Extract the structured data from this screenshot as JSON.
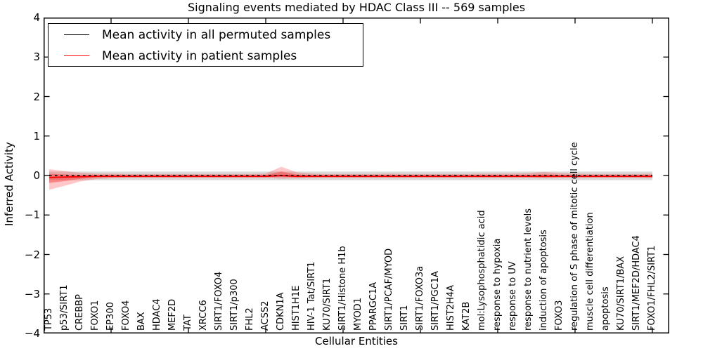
{
  "title": "Signaling events mediated by HDAC Class III -- 569 samples",
  "axes": {
    "xlabel": "Cellular Entities",
    "ylabel": "Inferred Activity",
    "yticks": [
      "4",
      "3",
      "2",
      "1",
      "0",
      "−1",
      "−2",
      "−3",
      "−4"
    ],
    "ytick_values": [
      4,
      3,
      2,
      1,
      0,
      -1,
      -2,
      -3,
      -4
    ],
    "ylim": [
      -4,
      4
    ]
  },
  "legend": {
    "items": [
      {
        "label": "Mean activity in all permuted samples",
        "color": "#000000"
      },
      {
        "label": "Mean activity in patient samples",
        "color": "#ff0000"
      }
    ]
  },
  "colors": {
    "patient": "#ff0000",
    "permuted": "#000000",
    "permuted_band": "#999999",
    "frame": "#000000",
    "background": "#ffffff"
  },
  "chart_data": {
    "type": "line",
    "title": "Signaling events mediated by HDAC Class III -- 569 samples",
    "xlabel": "Cellular Entities",
    "ylabel": "Inferred Activity",
    "ylim": [
      -4,
      4
    ],
    "grid": false,
    "legend_position": "upper-left",
    "xticks_at_category_numbers": [
      5,
      10,
      15,
      20,
      25,
      30,
      35,
      40
    ],
    "categories": [
      "TP53",
      "p53/SIRT1",
      "CREBBP",
      "FOXO1",
      "EP300",
      "FOXO4",
      "BAX",
      "HDAC4",
      "MEF2D",
      "TAT",
      "XRCC6",
      "SIRT1/FOXO4",
      "SIRT1/p300",
      "FHL2",
      "ACSS2",
      "CDKN1A",
      "HIST1H1E",
      "HIV-1 Tat/SIRT1",
      "KU70/SIRT1",
      "SIRT1/Histone H1b",
      "MYOD1",
      "PPARGC1A",
      "SIRT1/PCAF/MYOD",
      "SIRT1",
      "SIRT1/FOXO3a",
      "SIRT1/PGC1A",
      "HIST2H4A",
      "KAT2B",
      "mol:Lysophosphatidic acid",
      "response to hypoxia",
      "response to UV",
      "response to nutrient levels",
      "induction of apoptosis",
      "FOXO3",
      "regulation of S phase of mitotic cell cycle",
      "muscle cell differentiation",
      "apoptosis",
      "KU70/SIRT1/BAX",
      "SIRT1/MEF2D/HDAC4",
      "FOXO1/FHL2/SIRT1"
    ],
    "series": [
      {
        "name": "Mean activity in all permuted samples",
        "color": "#000000",
        "style": "dashed-over-solid",
        "values": [
          0,
          0,
          0,
          0,
          0,
          0,
          0,
          0,
          0,
          0,
          0,
          0,
          0,
          0,
          0,
          0,
          0,
          0,
          0,
          0,
          0,
          0,
          0,
          0,
          0,
          0,
          0,
          0,
          0,
          0,
          0,
          0,
          0,
          0,
          0,
          0,
          0,
          0,
          0,
          0
        ]
      },
      {
        "name": "Mean activity in patient samples",
        "color": "#ff0000",
        "style": "solid",
        "values": [
          -0.05,
          -0.04,
          -0.03,
          -0.02,
          -0.02,
          -0.02,
          -0.02,
          -0.02,
          -0.02,
          -0.02,
          -0.02,
          -0.02,
          -0.02,
          -0.02,
          -0.02,
          0,
          -0.02,
          -0.02,
          -0.02,
          -0.02,
          -0.02,
          -0.02,
          -0.02,
          -0.02,
          -0.02,
          -0.02,
          -0.02,
          -0.02,
          -0.02,
          -0.02,
          -0.02,
          -0.02,
          -0.02,
          -0.02,
          -0.02,
          -0.02,
          -0.02,
          -0.02,
          -0.02,
          -0.02
        ]
      }
    ],
    "bands": [
      {
        "name": "permuted-std",
        "color": "#999999",
        "opacity": 0.35,
        "upper": [
          0.1,
          0.1,
          0.1,
          0.1,
          0.1,
          0.1,
          0.1,
          0.1,
          0.1,
          0.1,
          0.1,
          0.1,
          0.1,
          0.1,
          0.1,
          0.1,
          0.1,
          0.1,
          0.1,
          0.1,
          0.1,
          0.1,
          0.1,
          0.1,
          0.1,
          0.1,
          0.1,
          0.1,
          0.1,
          0.1,
          0.1,
          0.1,
          0.1,
          0.1,
          0.1,
          0.1,
          0.1,
          0.1,
          0.1,
          0.1
        ],
        "lower": [
          -0.12,
          -0.12,
          -0.12,
          -0.12,
          -0.12,
          -0.12,
          -0.12,
          -0.12,
          -0.12,
          -0.12,
          -0.12,
          -0.12,
          -0.12,
          -0.12,
          -0.12,
          -0.12,
          -0.12,
          -0.12,
          -0.12,
          -0.12,
          -0.12,
          -0.12,
          -0.12,
          -0.12,
          -0.12,
          -0.12,
          -0.12,
          -0.12,
          -0.12,
          -0.12,
          -0.12,
          -0.12,
          -0.12,
          -0.12,
          -0.12,
          -0.12,
          -0.12,
          -0.12,
          -0.12,
          -0.12
        ]
      },
      {
        "name": "patient-std",
        "color": "#ff0000",
        "opacity": 0.22,
        "inner_scale": 0.45,
        "upper": [
          0.16,
          0.11,
          0.07,
          0.05,
          0.05,
          0.04,
          0.04,
          0.04,
          0.04,
          0.04,
          0.04,
          0.04,
          0.04,
          0.04,
          0.05,
          0.22,
          0.08,
          0.05,
          0.04,
          0.04,
          0.04,
          0.04,
          0.05,
          0.04,
          0.04,
          0.04,
          0.04,
          0.04,
          0.05,
          0.05,
          0.05,
          0.06,
          0.09,
          0.06,
          0.05,
          0.04,
          0.04,
          0.04,
          0.04,
          0.05
        ],
        "lower": [
          -0.36,
          -0.26,
          -0.15,
          -0.09,
          -0.07,
          -0.06,
          -0.06,
          -0.06,
          -0.06,
          -0.06,
          -0.06,
          -0.06,
          -0.06,
          -0.06,
          -0.06,
          -0.08,
          -0.07,
          -0.06,
          -0.06,
          -0.06,
          -0.06,
          -0.06,
          -0.06,
          -0.06,
          -0.06,
          -0.06,
          -0.06,
          -0.06,
          -0.06,
          -0.06,
          -0.06,
          -0.06,
          -0.07,
          -0.06,
          -0.06,
          -0.06,
          -0.06,
          -0.06,
          -0.06,
          -0.07
        ]
      }
    ]
  }
}
